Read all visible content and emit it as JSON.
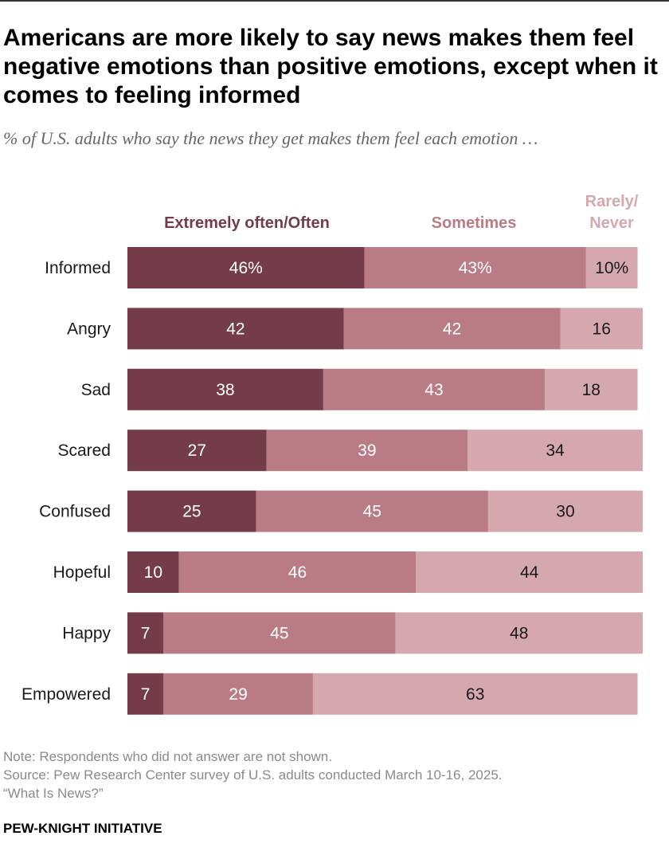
{
  "title": "Americans are more likely to say news makes them feel negative emotions than positive emotions, except when it comes to feeling informed",
  "subtitle": "% of U.S. adults who say the news they get makes them feel each emotion …",
  "note": "Note: Respondents who did not answer are not shown.",
  "source": "Source: Pew Research Center survey of U.S. adults conducted March 10-16, 2025.",
  "report": "“What Is News?”",
  "organization": "PEW-KNIGHT INITIATIVE",
  "chart_data": {
    "type": "bar",
    "orientation": "horizontal",
    "stacked": true,
    "categories": [
      "Informed",
      "Angry",
      "Sad",
      "Scared",
      "Confused",
      "Hopeful",
      "Happy",
      "Empowered"
    ],
    "series": [
      {
        "name": "Extremely often/Often",
        "color": "#733c48",
        "text_color": "#ffffff",
        "values": [
          46,
          42,
          38,
          27,
          25,
          10,
          7,
          7
        ],
        "labels": [
          "46%",
          "42",
          "38",
          "27",
          "25",
          "10",
          "7",
          "7"
        ]
      },
      {
        "name": "Sometimes",
        "color": "#b97b85",
        "text_color": "#ffffff",
        "values": [
          43,
          42,
          43,
          39,
          45,
          46,
          45,
          29
        ],
        "labels": [
          "43%",
          "42",
          "43",
          "39",
          "45",
          "46",
          "45",
          "29"
        ]
      },
      {
        "name": "Rarely/ Never",
        "name_lines": [
          "Rarely/",
          "Never"
        ],
        "color": "#d5a7ae",
        "text_color": "#1a1a1a",
        "values": [
          10,
          16,
          18,
          34,
          30,
          44,
          48,
          63
        ],
        "labels": [
          "10%",
          "16",
          "18",
          "34",
          "30",
          "44",
          "48",
          "63"
        ]
      }
    ],
    "xlim": [
      0,
      100
    ],
    "grid": false,
    "legend": "top",
    "legend_text_colors": [
      "#733c48",
      "#b97b85",
      "#d5a7ae"
    ]
  }
}
